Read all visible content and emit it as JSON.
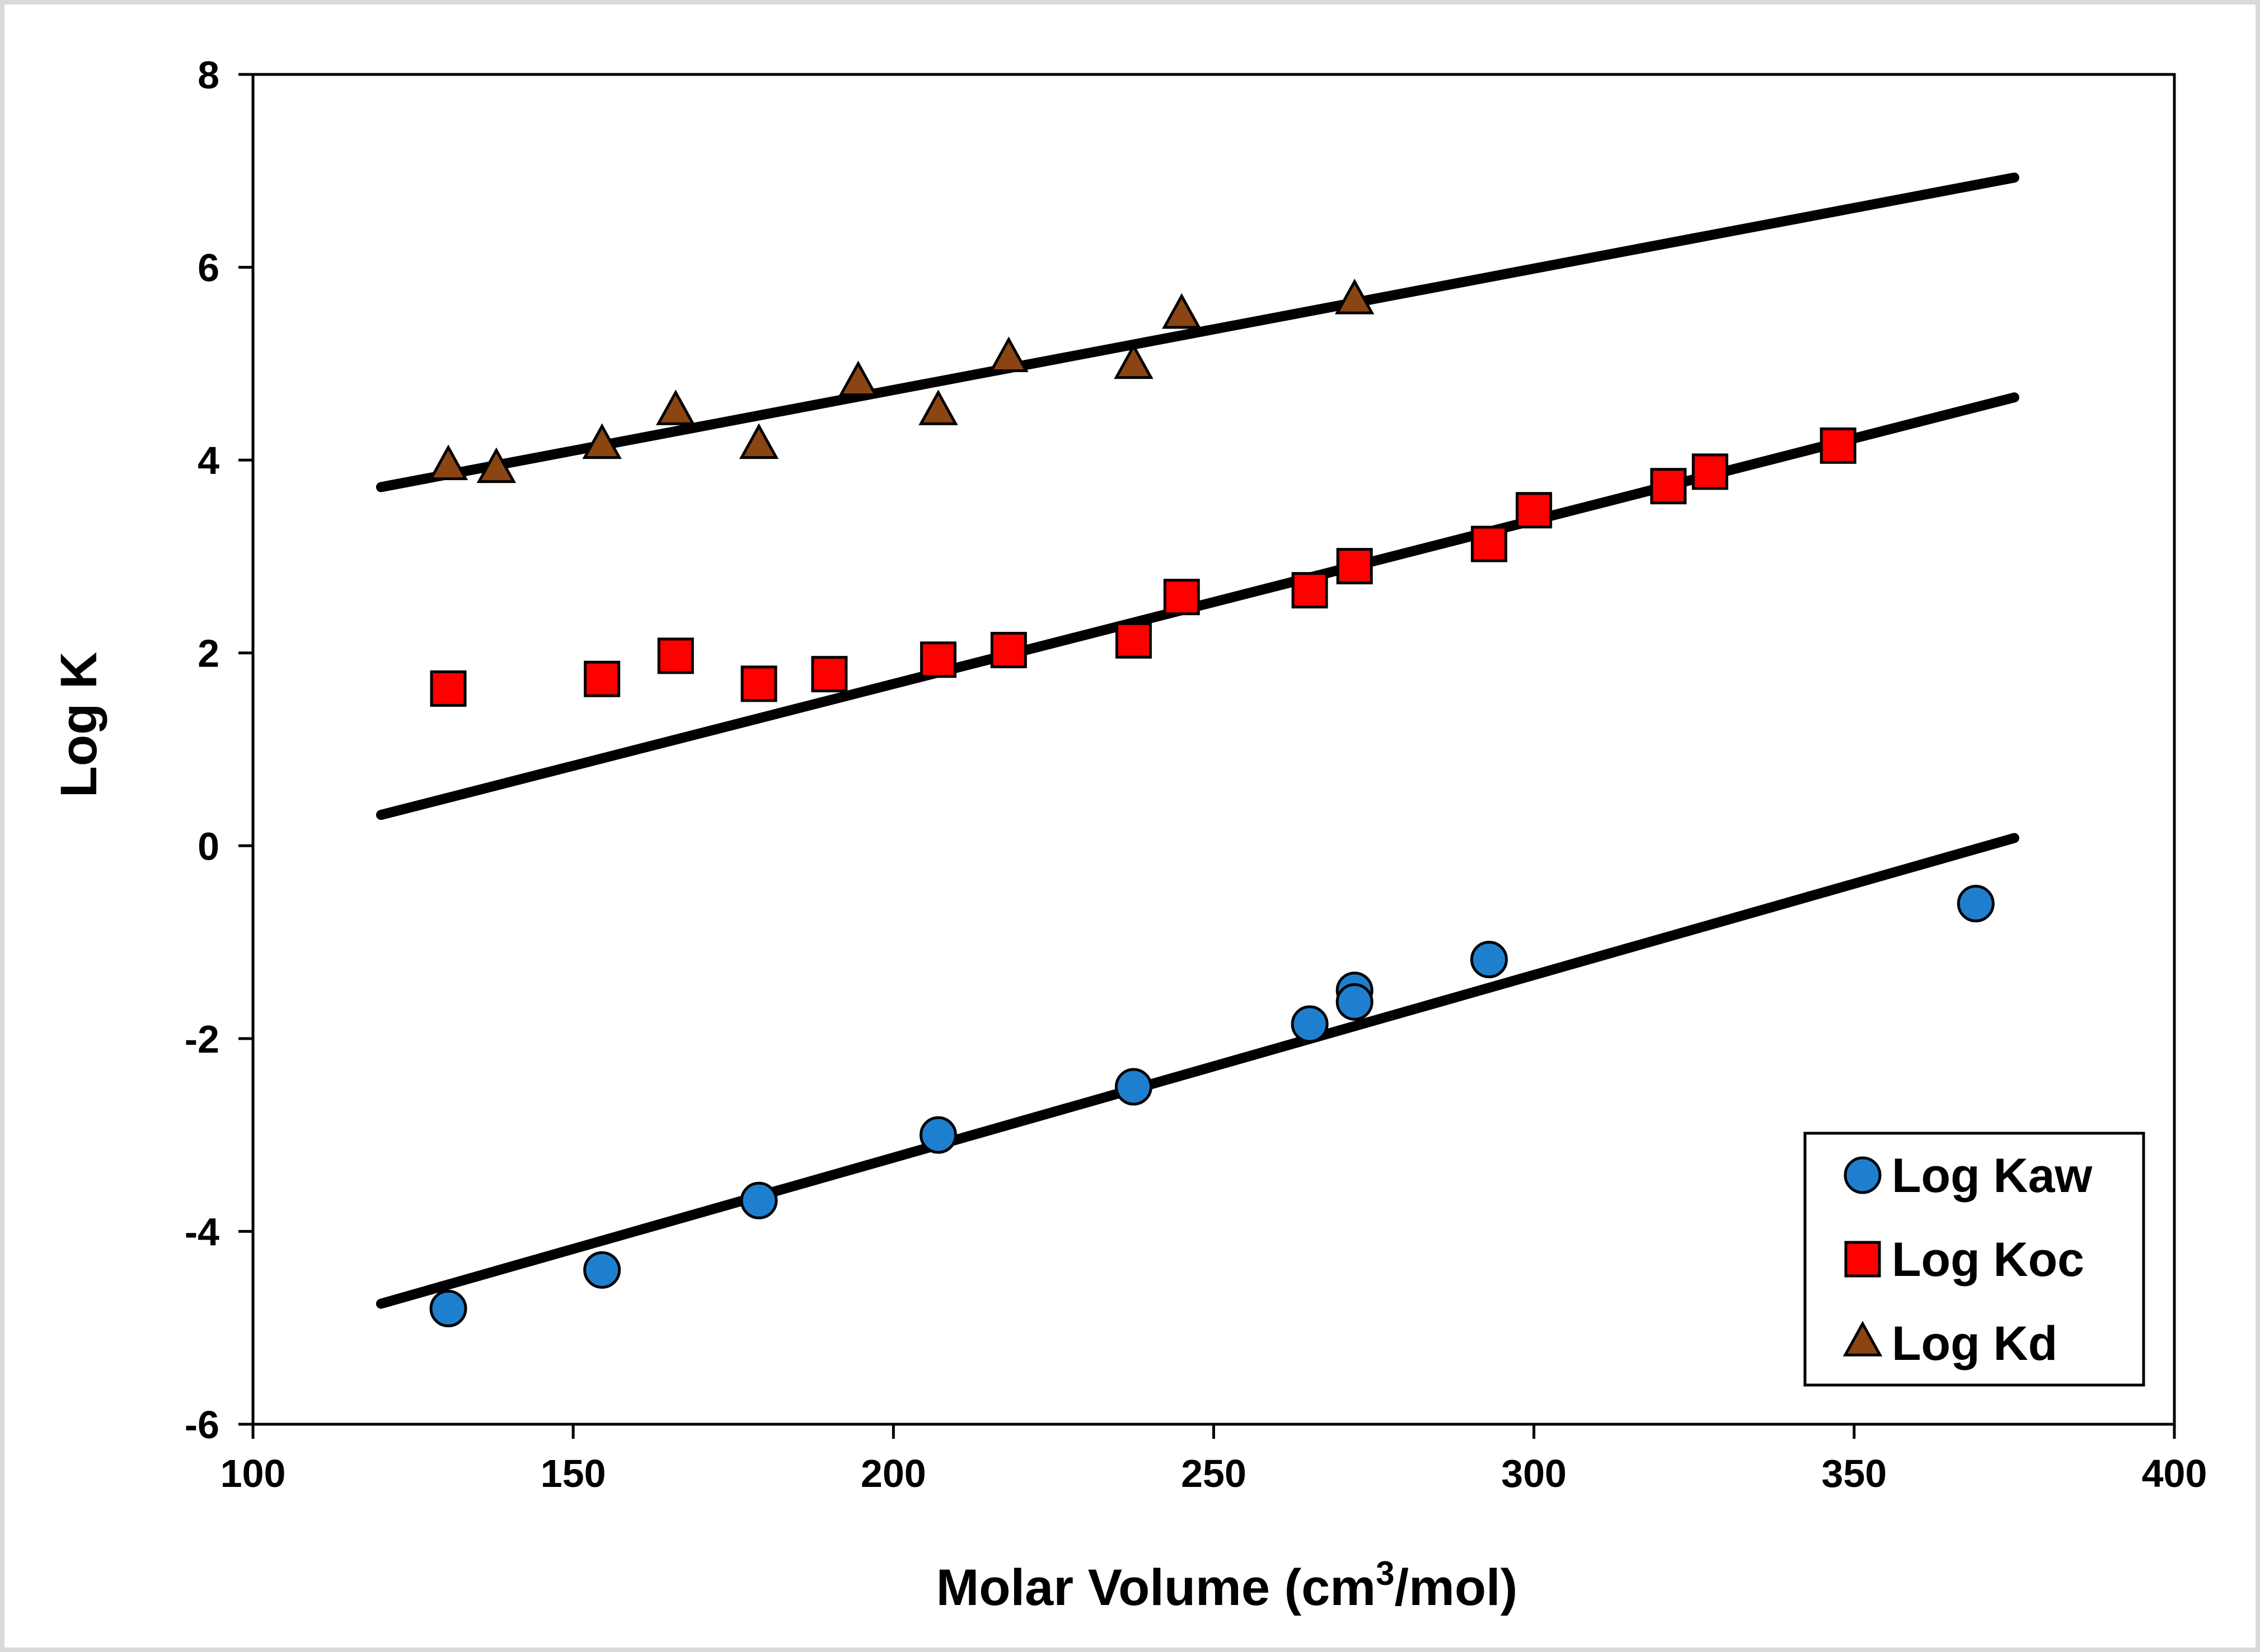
{
  "chart_data": {
    "type": "scatter",
    "title": "",
    "xlabel": "Molar Volume (cm",
    "xlabel_sup": "3",
    "xlabel_suffix": "/mol)",
    "ylabel": "Log K",
    "xlim": [
      100,
      400
    ],
    "ylim": [
      -6,
      8
    ],
    "xticks": [
      100,
      150,
      200,
      250,
      300,
      350,
      400
    ],
    "yticks": [
      -6,
      -4,
      -2,
      0,
      2,
      4,
      6,
      8
    ],
    "legend_position": "bottom-right",
    "series": [
      {
        "name": "Log Kaw",
        "marker": "circle",
        "color": "#1f7fcf",
        "points": [
          [
            130.5,
            -4.8
          ],
          [
            154.5,
            -4.4
          ],
          [
            179,
            -3.68
          ],
          [
            207,
            -3.0
          ],
          [
            237.5,
            -2.5
          ],
          [
            265,
            -1.85
          ],
          [
            272,
            -1.5
          ],
          [
            272,
            -1.62
          ],
          [
            293,
            -1.18
          ],
          [
            369,
            -0.6
          ]
        ]
      },
      {
        "name": "Log Koc",
        "marker": "square",
        "color": "#ff0000",
        "points": [
          [
            130.5,
            1.63
          ],
          [
            154.5,
            1.73
          ],
          [
            166,
            1.97
          ],
          [
            179,
            1.68
          ],
          [
            190,
            1.78
          ],
          [
            207,
            1.93
          ],
          [
            218,
            2.03
          ],
          [
            237.5,
            2.13
          ],
          [
            245,
            2.58
          ],
          [
            265,
            2.65
          ],
          [
            272,
            2.9
          ],
          [
            293,
            3.13
          ],
          [
            300,
            3.48
          ],
          [
            321,
            3.73
          ],
          [
            327.5,
            3.88
          ],
          [
            347.5,
            4.15
          ]
        ]
      },
      {
        "name": "Log Kd",
        "marker": "triangle",
        "color": "#8b4513",
        "points": [
          [
            130.5,
            3.93
          ],
          [
            138,
            3.9
          ],
          [
            154.5,
            4.15
          ],
          [
            166,
            4.5
          ],
          [
            179,
            4.15
          ],
          [
            194.5,
            4.8
          ],
          [
            207,
            4.5
          ],
          [
            218,
            5.05
          ],
          [
            237.5,
            4.98
          ],
          [
            245,
            5.5
          ],
          [
            272,
            5.65
          ]
        ]
      }
    ],
    "fit_lines": [
      {
        "name": "Log Kaw fit",
        "x": [
          120,
          375
        ],
        "y": [
          -4.75,
          0.08
        ]
      },
      {
        "name": "Log Koc fit",
        "x": [
          120,
          375
        ],
        "y": [
          0.32,
          4.65
        ]
      },
      {
        "name": "Log Kd fit",
        "x": [
          120,
          375
        ],
        "y": [
          3.72,
          6.93
        ]
      }
    ]
  },
  "colors": {
    "axis": "#000000",
    "fit_line": "#000000",
    "marker_edge": "#000000",
    "background": "#ffffff",
    "frame": "#d9d9d9"
  }
}
